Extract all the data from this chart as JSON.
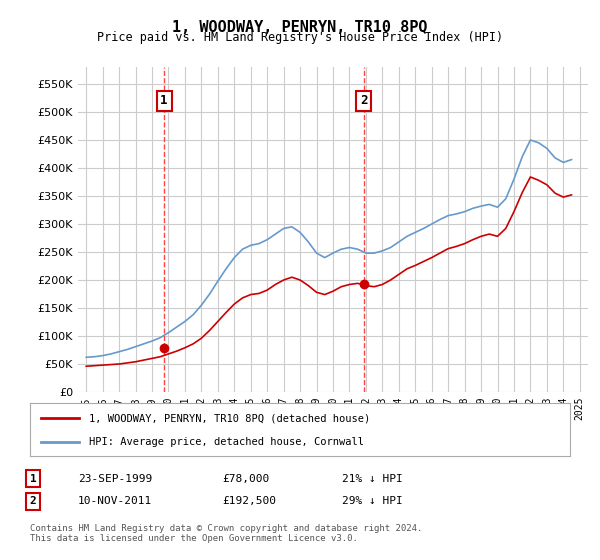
{
  "title": "1, WOODWAY, PENRYN, TR10 8PQ",
  "subtitle": "Price paid vs. HM Land Registry's House Price Index (HPI)",
  "xlabel": "",
  "ylabel": "",
  "ylim": [
    0,
    580000
  ],
  "yticks": [
    0,
    50000,
    100000,
    150000,
    200000,
    250000,
    300000,
    350000,
    400000,
    450000,
    500000,
    550000
  ],
  "bg_color": "#ffffff",
  "grid_color": "#cccccc",
  "sale1_date": "1999-09-23",
  "sale1_price": 78000,
  "sale1_label": "1",
  "sale1_year": 1999.73,
  "sale2_date": "2011-11-10",
  "sale2_price": 192500,
  "sale2_label": "2",
  "sale2_year": 2011.86,
  "red_color": "#cc0000",
  "blue_color": "#6699cc",
  "vline_color": "#ff4444",
  "legend_label_red": "1, WOODWAY, PENRYN, TR10 8PQ (detached house)",
  "legend_label_blue": "HPI: Average price, detached house, Cornwall",
  "annotation1": [
    "1",
    "23-SEP-1999",
    "£78,000",
    "21% ↓ HPI"
  ],
  "annotation2": [
    "2",
    "10-NOV-2011",
    "£192,500",
    "29% ↓ HPI"
  ],
  "footnote": "Contains HM Land Registry data © Crown copyright and database right 2024.\nThis data is licensed under the Open Government Licence v3.0.",
  "hpi_years": [
    1995.0,
    1995.5,
    1996.0,
    1996.5,
    1997.0,
    1997.5,
    1998.0,
    1998.5,
    1999.0,
    1999.5,
    2000.0,
    2000.5,
    2001.0,
    2001.5,
    2002.0,
    2002.5,
    2003.0,
    2003.5,
    2004.0,
    2004.5,
    2005.0,
    2005.5,
    2006.0,
    2006.5,
    2007.0,
    2007.5,
    2008.0,
    2008.5,
    2009.0,
    2009.5,
    2010.0,
    2010.5,
    2011.0,
    2011.5,
    2012.0,
    2012.5,
    2013.0,
    2013.5,
    2014.0,
    2014.5,
    2015.0,
    2015.5,
    2016.0,
    2016.5,
    2017.0,
    2017.5,
    2018.0,
    2018.5,
    2019.0,
    2019.5,
    2020.0,
    2020.5,
    2021.0,
    2021.5,
    2022.0,
    2022.5,
    2023.0,
    2023.5,
    2024.0,
    2024.5
  ],
  "hpi_values": [
    62000,
    63000,
    65000,
    68000,
    72000,
    76000,
    81000,
    86000,
    91000,
    97000,
    106000,
    116000,
    126000,
    138000,
    155000,
    175000,
    198000,
    220000,
    240000,
    255000,
    262000,
    265000,
    272000,
    282000,
    292000,
    295000,
    285000,
    268000,
    248000,
    240000,
    248000,
    255000,
    258000,
    255000,
    248000,
    248000,
    252000,
    258000,
    268000,
    278000,
    285000,
    292000,
    300000,
    308000,
    315000,
    318000,
    322000,
    328000,
    332000,
    335000,
    330000,
    345000,
    380000,
    420000,
    450000,
    445000,
    435000,
    418000,
    410000,
    415000
  ],
  "price_years": [
    1995.0,
    1995.5,
    1996.0,
    1996.5,
    1997.0,
    1997.5,
    1998.0,
    1998.5,
    1999.0,
    1999.5,
    2000.0,
    2000.5,
    2001.0,
    2001.5,
    2002.0,
    2002.5,
    2003.0,
    2003.5,
    2004.0,
    2004.5,
    2005.0,
    2005.5,
    2006.0,
    2006.5,
    2007.0,
    2007.5,
    2008.0,
    2008.5,
    2009.0,
    2009.5,
    2010.0,
    2010.5,
    2011.0,
    2011.5,
    2012.0,
    2012.5,
    2013.0,
    2013.5,
    2014.0,
    2014.5,
    2015.0,
    2015.5,
    2016.0,
    2016.5,
    2017.0,
    2017.5,
    2018.0,
    2018.5,
    2019.0,
    2019.5,
    2020.0,
    2020.5,
    2021.0,
    2021.5,
    2022.0,
    2022.5,
    2023.0,
    2023.5,
    2024.0,
    2024.5
  ],
  "price_values": [
    46000,
    47000,
    48000,
    49000,
    50000,
    52000,
    54000,
    57000,
    60000,
    63000,
    68000,
    73000,
    79000,
    86000,
    96000,
    110000,
    126000,
    142000,
    157000,
    168000,
    174000,
    176000,
    182000,
    192000,
    200000,
    205000,
    200000,
    190000,
    178000,
    174000,
    180000,
    188000,
    192000,
    194000,
    190000,
    188000,
    192000,
    200000,
    210000,
    220000,
    226000,
    233000,
    240000,
    248000,
    256000,
    260000,
    265000,
    272000,
    278000,
    282000,
    278000,
    292000,
    322000,
    356000,
    384000,
    378000,
    370000,
    355000,
    348000,
    352000
  ]
}
